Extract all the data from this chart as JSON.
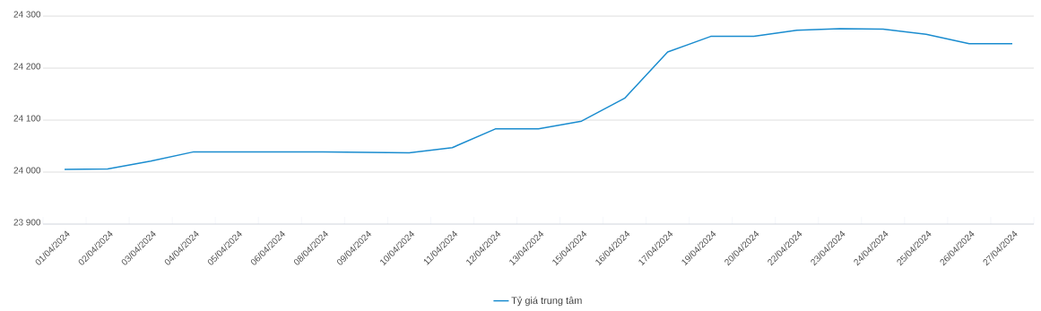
{
  "chart_data": {
    "type": "line",
    "categories": [
      "01/04/2024",
      "02/04/2024",
      "03/04/2024",
      "04/04/2024",
      "05/04/2024",
      "06/04/2024",
      "08/04/2024",
      "09/04/2024",
      "10/04/2024",
      "11/04/2024",
      "12/04/2024",
      "13/04/2024",
      "15/04/2024",
      "16/04/2024",
      "17/04/2024",
      "19/04/2024",
      "20/04/2024",
      "22/04/2024",
      "23/04/2024",
      "24/04/2024",
      "25/04/2024",
      "26/04/2024",
      "27/04/2024"
    ],
    "series": [
      {
        "name": "Tỷ giá trung tâm",
        "color": "#1a8ccf",
        "values": [
          24005,
          24006,
          24021,
          24039,
          24039,
          24039,
          24039,
          24038,
          24037,
          24047,
          24083,
          24083,
          24098,
          24142,
          24231,
          24261,
          24261,
          24273,
          24276,
          24275,
          24265,
          24247,
          24247
        ]
      }
    ],
    "ylim": [
      23900,
      24300
    ],
    "yticks": [
      {
        "value": 23900,
        "label": "23 900"
      },
      {
        "value": 24000,
        "label": "24 000"
      },
      {
        "value": 24100,
        "label": "24 100"
      },
      {
        "value": 24200,
        "label": "24 200"
      },
      {
        "value": 24300,
        "label": "24 300"
      }
    ],
    "grid": "y",
    "legend": "bottom",
    "marker": "none",
    "line_style": "solid"
  }
}
